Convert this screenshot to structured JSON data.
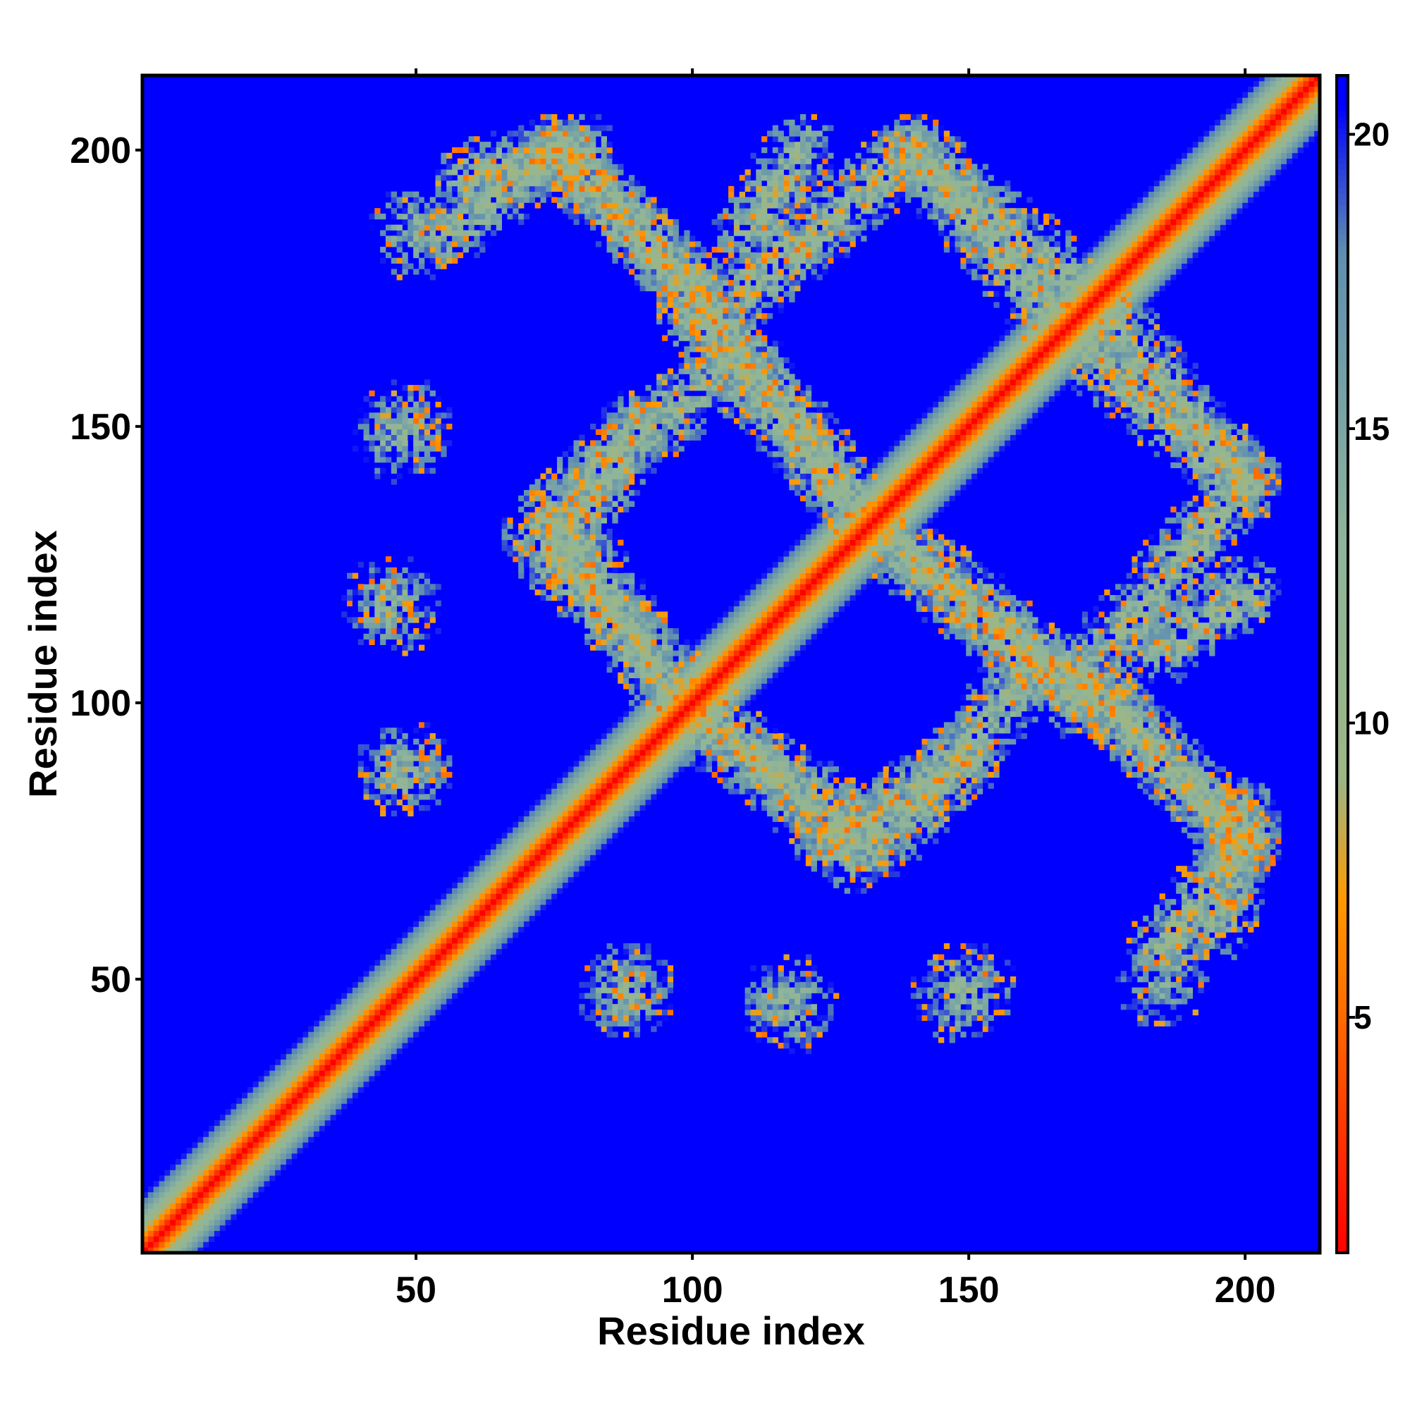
{
  "chart_data": {
    "type": "heatmap",
    "title": "",
    "xlabel": "Residue index",
    "ylabel": "Residue index",
    "n_residues": 213,
    "xlim": [
      1,
      213
    ],
    "ylim": [
      1,
      213
    ],
    "x_ticks": [
      50,
      100,
      150,
      200
    ],
    "y_ticks": [
      50,
      100,
      150,
      200
    ],
    "colorbar": {
      "range": [
        1,
        21
      ],
      "ticks": [
        5,
        10,
        15,
        20
      ],
      "stops": [
        {
          "value": 1,
          "color": "#ff0000"
        },
        {
          "value": 3,
          "color": "#ff3300"
        },
        {
          "value": 5,
          "color": "#ff6a00"
        },
        {
          "value": 7,
          "color": "#ff9900"
        },
        {
          "value": 9,
          "color": "#9db684"
        },
        {
          "value": 13,
          "color": "#8fb59b"
        },
        {
          "value": 18,
          "color": "#5f8fb0"
        },
        {
          "value": 20.5,
          "color": "#0000ff"
        }
      ],
      "background_color": "#0000ff"
    },
    "features": [
      {
        "kind": "diagonal",
        "from": 1,
        "to": 213
      },
      {
        "kind": "antiparallel_band",
        "i": [
          50,
          213
        ],
        "j": [
          52,
          213
        ],
        "note": "segment from (48,185)-(115,193)"
      },
      {
        "kind": "contact_band",
        "from": [
          75,
          200
        ],
        "to": [
          105,
          170
        ]
      },
      {
        "kind": "contact_band",
        "from": [
          100,
          170
        ],
        "to": [
          130,
          135
        ]
      },
      {
        "kind": "contact_band",
        "from": [
          72,
          130
        ],
        "to": [
          100,
          100
        ]
      },
      {
        "kind": "contact_band",
        "from": [
          95,
          100
        ],
        "to": [
          135,
          75
        ]
      },
      {
        "kind": "contact_band",
        "from": [
          135,
          130
        ],
        "to": [
          175,
          100
        ]
      },
      {
        "kind": "contact_band",
        "from": [
          175,
          100
        ],
        "to": [
          200,
          75
        ]
      },
      {
        "kind": "contact_band",
        "from": [
          140,
          200
        ],
        "to": [
          170,
          175
        ]
      },
      {
        "kind": "contact_band",
        "from": [
          170,
          165
        ],
        "to": [
          200,
          140
        ]
      },
      {
        "kind": "contact_band",
        "from": [
          110,
          175
        ],
        "to": [
          140,
          200
        ]
      },
      {
        "kind": "contact_band",
        "from": [
          80,
          140
        ],
        "to": [
          105,
          160
        ]
      },
      {
        "kind": "contact_band",
        "from": [
          125,
          75
        ],
        "to": [
          150,
          90
        ]
      },
      {
        "kind": "contact_band",
        "from": [
          185,
          110
        ],
        "to": [
          200,
          120
        ]
      },
      {
        "kind": "contact_band",
        "from": [
          185,
          55
        ],
        "to": [
          200,
          75
        ]
      },
      {
        "kind": "contact_band",
        "from": [
          60,
          195
        ],
        "to": [
          80,
          200
        ]
      },
      {
        "kind": "blob",
        "center": [
          45,
          118
        ]
      },
      {
        "kind": "blob",
        "center": [
          48,
          88
        ]
      },
      {
        "kind": "blob",
        "center": [
          88,
          48
        ]
      },
      {
        "kind": "blob",
        "center": [
          117,
          46
        ]
      },
      {
        "kind": "blob",
        "center": [
          148,
          47
        ]
      },
      {
        "kind": "blob",
        "center": [
          185,
          50
        ]
      },
      {
        "kind": "blob",
        "center": [
          48,
          150
        ]
      }
    ]
  }
}
